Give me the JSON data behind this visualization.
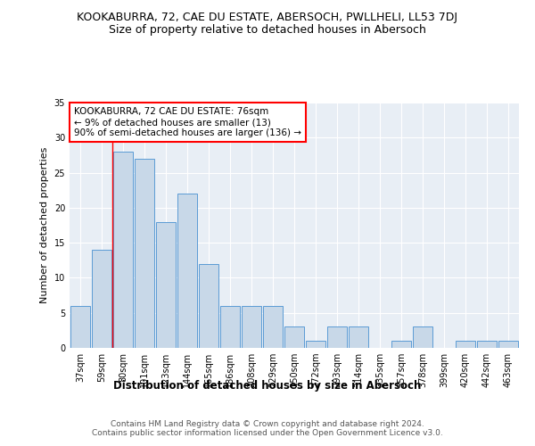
{
  "title": "KOOKABURRA, 72, CAE DU ESTATE, ABERSOCH, PWLLHELI, LL53 7DJ",
  "subtitle": "Size of property relative to detached houses in Abersoch",
  "xlabel": "Distribution of detached houses by size in Abersoch",
  "ylabel": "Number of detached properties",
  "categories": [
    "37sqm",
    "59sqm",
    "80sqm",
    "101sqm",
    "123sqm",
    "144sqm",
    "165sqm",
    "186sqm",
    "208sqm",
    "229sqm",
    "250sqm",
    "272sqm",
    "293sqm",
    "314sqm",
    "335sqm",
    "357sqm",
    "378sqm",
    "399sqm",
    "420sqm",
    "442sqm",
    "463sqm"
  ],
  "values": [
    6,
    14,
    28,
    27,
    18,
    22,
    12,
    6,
    6,
    6,
    3,
    1,
    3,
    3,
    0,
    1,
    3,
    0,
    1,
    1,
    1
  ],
  "bar_color": "#c8d8e8",
  "bar_edge_color": "#5b9bd5",
  "vline_x": 1.5,
  "vline_color": "red",
  "annotation_text": "KOOKABURRA, 72 CAE DU ESTATE: 76sqm\n← 9% of detached houses are smaller (13)\n90% of semi-detached houses are larger (136) →",
  "annotation_box_color": "white",
  "annotation_box_edge_color": "red",
  "ylim": [
    0,
    35
  ],
  "yticks": [
    0,
    5,
    10,
    15,
    20,
    25,
    30,
    35
  ],
  "background_color": "#e8eef5",
  "footer_text": "Contains HM Land Registry data © Crown copyright and database right 2024.\nContains public sector information licensed under the Open Government Licence v3.0.",
  "title_fontsize": 9,
  "subtitle_fontsize": 9,
  "xlabel_fontsize": 8.5,
  "ylabel_fontsize": 8,
  "tick_fontsize": 7,
  "annotation_fontsize": 7.5,
  "footer_fontsize": 6.5
}
